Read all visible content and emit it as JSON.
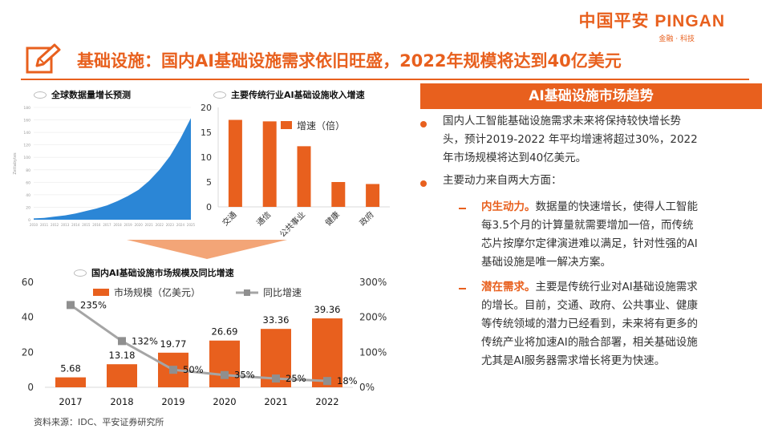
{
  "header": {
    "logo_text": "中国平安 PINGAN",
    "logo_sub": "金融 · 科技",
    "title": "基础设施：国内AI基础设施需求依旧旺盛，2022年规模将达到40亿美元"
  },
  "colors": {
    "accent": "#e8601e",
    "area_blue": "#2b86d6",
    "line_grey": "#a5a5a5"
  },
  "chart_data": [
    {
      "type": "area",
      "title": "全球数据量增长预测",
      "ylabel": "Zettabytes",
      "ylim": [
        0,
        180
      ],
      "yticks": [
        "0",
        "20",
        "40",
        "60",
        "80",
        "100",
        "120",
        "140",
        "160",
        "180"
      ],
      "x": [
        "2010",
        "2011",
        "2012",
        "2013",
        "2014",
        "2015",
        "2016",
        "2017",
        "2018",
        "2019",
        "2020",
        "2021",
        "2022",
        "2023",
        "2024",
        "2025"
      ],
      "values": [
        2,
        3,
        5,
        7,
        10,
        14,
        18,
        23,
        30,
        38,
        48,
        62,
        80,
        102,
        130,
        163
      ]
    },
    {
      "type": "bar",
      "title": "主要传统行业AI基础设施收入增速",
      "categories": [
        "交通",
        "通信",
        "公共事业",
        "健康",
        "政府"
      ],
      "values": [
        17.5,
        17.2,
        12.2,
        5.0,
        4.6
      ],
      "legend": "增速（倍）",
      "ylim": [
        0,
        20
      ],
      "yticks": [
        "0",
        "5",
        "10",
        "15",
        "20"
      ]
    },
    {
      "type": "bar",
      "title": "国内AI基础设施市场规模及同比增速",
      "categories": [
        "2017",
        "2018",
        "2019",
        "2020",
        "2021",
        "2022"
      ],
      "series": [
        {
          "name": "市场规模（亿美元）",
          "values": [
            5.68,
            13.18,
            19.77,
            26.69,
            33.36,
            39.36
          ],
          "labels": [
            "5.68",
            "13.18",
            "19.77",
            "26.69",
            "33.36",
            "39.36"
          ]
        },
        {
          "name": "同比增速",
          "values": [
            235,
            132,
            50,
            35,
            25,
            18
          ],
          "labels": [
            "235%",
            "132%",
            "50%",
            "35%",
            "25%",
            "18%"
          ]
        }
      ],
      "ylim_left": [
        0,
        60
      ],
      "ylim_right": [
        0,
        300
      ],
      "yticks_left": [
        "0",
        "20",
        "40",
        "60"
      ],
      "yticks_right": [
        "0%",
        "100%",
        "200%",
        "300%"
      ]
    }
  ],
  "panel": {
    "heading": "AI基础设施市场趋势",
    "bullet1": [
      "国内人工智能基础设施需求未来将保持较快增长势",
      "头，预计2019-2022 年平均增速将超过30%，2022",
      "年市场规模将达到40亿美元。"
    ],
    "bullet2": "主要动力来自两大方面：",
    "sub1_label": "内生动力。",
    "sub1_lines": [
      "数据量的快速增长，使得人工智能",
      "每3.5个月的计算量就需要增加一倍，而传统",
      "芯片按摩尔定律演进难以满足，针对性强的AI",
      "基础设施是唯一解决方案。"
    ],
    "sub2_label": "潜在需求。",
    "sub2_lines": [
      "主要是传统行业对AI基础设施需求",
      "的增长。目前，交通、政府、公共事业、健康",
      "等传统领域的潜力已经看到，未来将有更多的",
      "传统产业将加速AI的融合部署，相关基础设施",
      "尤其是AI服务器需求增长将更为快速。"
    ]
  },
  "source": "资料来源：IDC、平安证券研究所"
}
